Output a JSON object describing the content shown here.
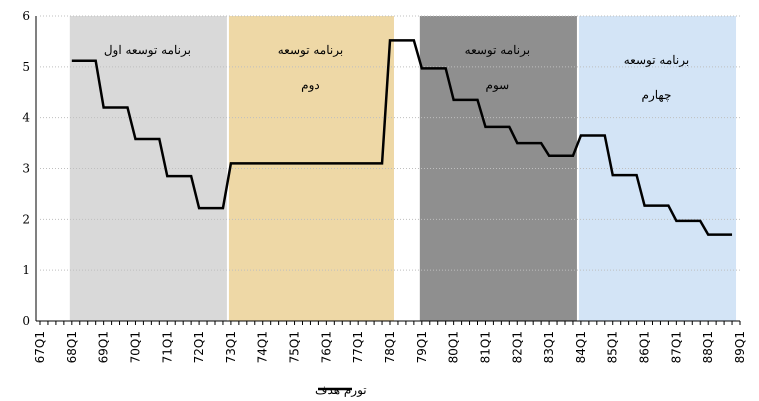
{
  "chart_data": {
    "type": "line",
    "categories": [
      "67Q1",
      null,
      null,
      null,
      "68Q1",
      null,
      null,
      null,
      "69Q1",
      null,
      null,
      null,
      "70Q1",
      null,
      null,
      null,
      "71Q1",
      null,
      null,
      null,
      "72Q1",
      null,
      null,
      null,
      "73Q1",
      null,
      null,
      null,
      "74Q1",
      null,
      null,
      null,
      "75Q1",
      null,
      null,
      null,
      "76Q1",
      null,
      null,
      null,
      "77Q1",
      null,
      null,
      null,
      "78Q1",
      null,
      null,
      null,
      "79Q1",
      null,
      null,
      null,
      "80Q1",
      null,
      null,
      null,
      "81Q1",
      null,
      null,
      null,
      "82Q1",
      null,
      null,
      null,
      "83Q1",
      null,
      null,
      null,
      "84Q1",
      null,
      null,
      null,
      "85Q1",
      null,
      null,
      null,
      "86Q1",
      null,
      null,
      null,
      "87Q1",
      null,
      null,
      null,
      "88Q1",
      null,
      null,
      null,
      "89Q1"
    ],
    "series": [
      {
        "name": "تورم هدف",
        "color": "#000000",
        "values": [
          null,
          null,
          null,
          null,
          5.12,
          5.12,
          5.12,
          5.12,
          4.2,
          4.2,
          4.2,
          4.2,
          3.58,
          3.58,
          3.58,
          3.58,
          2.85,
          2.85,
          2.85,
          2.85,
          2.22,
          2.22,
          2.22,
          2.22,
          3.1,
          3.1,
          3.1,
          3.1,
          3.1,
          3.1,
          3.1,
          3.1,
          3.1,
          3.1,
          3.1,
          3.1,
          3.1,
          3.1,
          3.1,
          3.1,
          3.1,
          3.1,
          3.1,
          3.1,
          5.52,
          5.52,
          5.52,
          5.52,
          4.97,
          4.97,
          4.97,
          4.97,
          4.35,
          4.35,
          4.35,
          4.35,
          3.82,
          3.82,
          3.82,
          3.82,
          3.5,
          3.5,
          3.5,
          3.5,
          3.25,
          3.25,
          3.25,
          3.25,
          3.65,
          3.65,
          3.65,
          3.65,
          2.87,
          2.87,
          2.87,
          2.87,
          2.27,
          2.27,
          2.27,
          2.27,
          1.97,
          1.97,
          1.97,
          1.97,
          1.7,
          1.7,
          1.7,
          1.7,
          null
        ]
      }
    ],
    "ylim": [
      0,
      6
    ],
    "yticks": [
      0,
      1,
      2,
      3,
      4,
      5,
      6
    ],
    "grid": true,
    "periods": [
      {
        "lines": [
          "برنامه توسعه اول"
        ],
        "start": "68Q1",
        "end": "72Q4",
        "color": "#d9d9d9"
      },
      {
        "lines": [
          "برنامه توسعه",
          "دوم"
        ],
        "start": "73Q1",
        "end": "78Q1",
        "color": "#eed8a6"
      },
      {
        "lines": [
          "برنامه توسعه",
          "سوم"
        ],
        "start": "79Q1",
        "end": "83Q4",
        "color": "#8f8f8f"
      },
      {
        "lines": [
          "برنامه توسعه",
          "چهارم"
        ],
        "start": "84Q1",
        "end": "88Q4",
        "color": "#d3e4f6"
      }
    ]
  }
}
